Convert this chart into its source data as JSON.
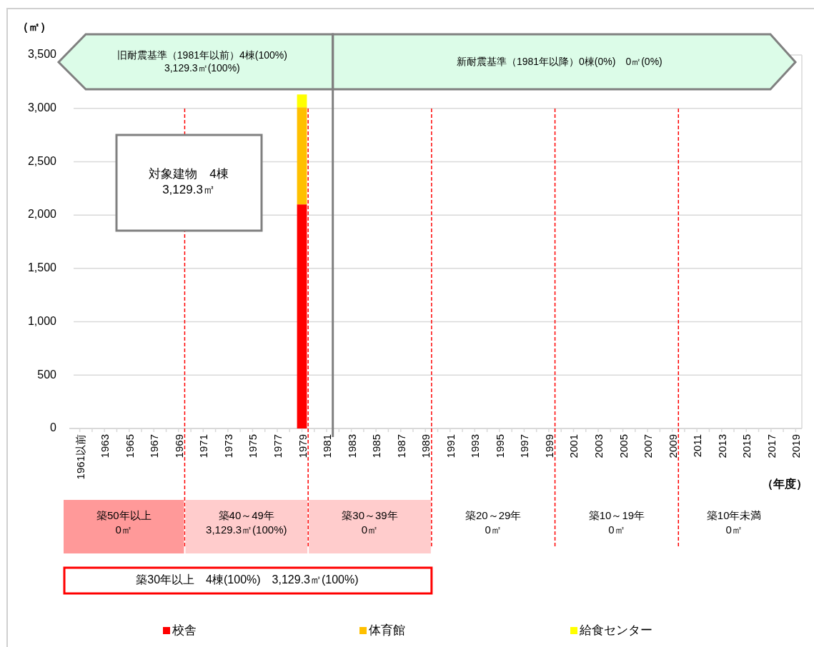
{
  "chart_data": {
    "type": "bar",
    "stacked": true,
    "ylabel": "（㎡）",
    "xlabel": "（年度）",
    "x": [
      1979
    ],
    "series": [
      {
        "name": "校舎",
        "color": "#ff0000",
        "values": [
          2100
        ]
      },
      {
        "name": "体育館",
        "color": "#ffc000",
        "values": [
          910
        ]
      },
      {
        "name": "給食センター",
        "color": "#ffff00",
        "values": [
          120
        ]
      }
    ],
    "xlim": [
      1960.5,
      2019.5
    ],
    "xticks": [
      {
        "value": 1961,
        "label": "1961以前"
      },
      {
        "value": 1962,
        "label": null
      },
      1963,
      {
        "value": 1964,
        "label": null
      },
      1965,
      {
        "value": 1966,
        "label": null
      },
      1967,
      {
        "value": 1968,
        "label": null
      },
      1969,
      {
        "value": 1970,
        "label": null
      },
      1971,
      {
        "value": 1972,
        "label": null
      },
      1973,
      {
        "value": 1974,
        "label": null
      },
      1975,
      {
        "value": 1976,
        "label": null
      },
      1977,
      {
        "value": 1978,
        "label": null
      },
      1979,
      {
        "value": 1980,
        "label": null
      },
      1981,
      {
        "value": 1982,
        "label": null
      },
      1983,
      {
        "value": 1984,
        "label": null
      },
      1985,
      {
        "value": 1986,
        "label": null
      },
      1987,
      {
        "value": 1988,
        "label": null
      },
      1989,
      {
        "value": 1990,
        "label": null
      },
      1991,
      {
        "value": 1992,
        "label": null
      },
      1993,
      {
        "value": 1994,
        "label": null
      },
      1995,
      {
        "value": 1996,
        "label": null
      },
      1997,
      {
        "value": 1998,
        "label": null
      },
      1999,
      {
        "value": 2000,
        "label": null
      },
      2001,
      {
        "value": 2002,
        "label": null
      },
      2003,
      {
        "value": 2004,
        "label": null
      },
      2005,
      {
        "value": 2006,
        "label": null
      },
      2007,
      {
        "value": 2008,
        "label": null
      },
      2009,
      {
        "value": 2010,
        "label": null
      },
      2011,
      {
        "value": 2012,
        "label": null
      },
      2013,
      {
        "value": 2014,
        "label": null
      },
      2015,
      {
        "value": 2016,
        "label": null
      },
      2017,
      {
        "value": 2018,
        "label": null
      },
      2019
    ],
    "ylim": [
      0,
      3500
    ],
    "yticks": [
      0,
      500,
      {
        "value": 1000,
        "label": "1,000"
      },
      {
        "value": 1500,
        "label": "1,500"
      },
      {
        "value": 2000,
        "label": "2,000"
      },
      {
        "value": 2500,
        "label": "2,500"
      },
      {
        "value": 3000,
        "label": "3,000"
      },
      {
        "value": 3500,
        "label": "3,500"
      }
    ],
    "grid": "y",
    "legend": "bottom",
    "ref_lines": [
      {
        "axis": "x",
        "value": 1969.5,
        "color": "#ff0000",
        "line_style": "dashed"
      },
      {
        "axis": "x",
        "value": 1979.5,
        "color": "#ff0000",
        "line_style": "dashed"
      },
      {
        "axis": "x",
        "value": 1989.5,
        "color": "#ff0000",
        "line_style": "dashed"
      },
      {
        "axis": "x",
        "value": 1999.5,
        "color": "#ff0000",
        "line_style": "dashed"
      },
      {
        "axis": "x",
        "value": 2009.5,
        "color": "#ff0000",
        "line_style": "dashed"
      },
      {
        "axis": "x",
        "value": 1981.5,
        "color": "#808080",
        "line_style": "solid"
      }
    ],
    "annotations": [
      "旧耐震基準（1981年以前）4棟(100%)\n3,129.3㎡(100%)",
      "新耐震基準（1981年以降）0棟(0%)　0㎡(0%)",
      "対象建物　4棟\n3,129.3㎡",
      "築50年以上\n0㎡",
      "築40～49年\n3,129.3㎡(100%)",
      "築30～39年\n0㎡",
      "築20～29年\n0㎡",
      "築10～19年\n0㎡",
      "築10年未満\n0㎡",
      "築30年以上　4棟(100%)　3,129.3㎡(100%)"
    ]
  }
}
